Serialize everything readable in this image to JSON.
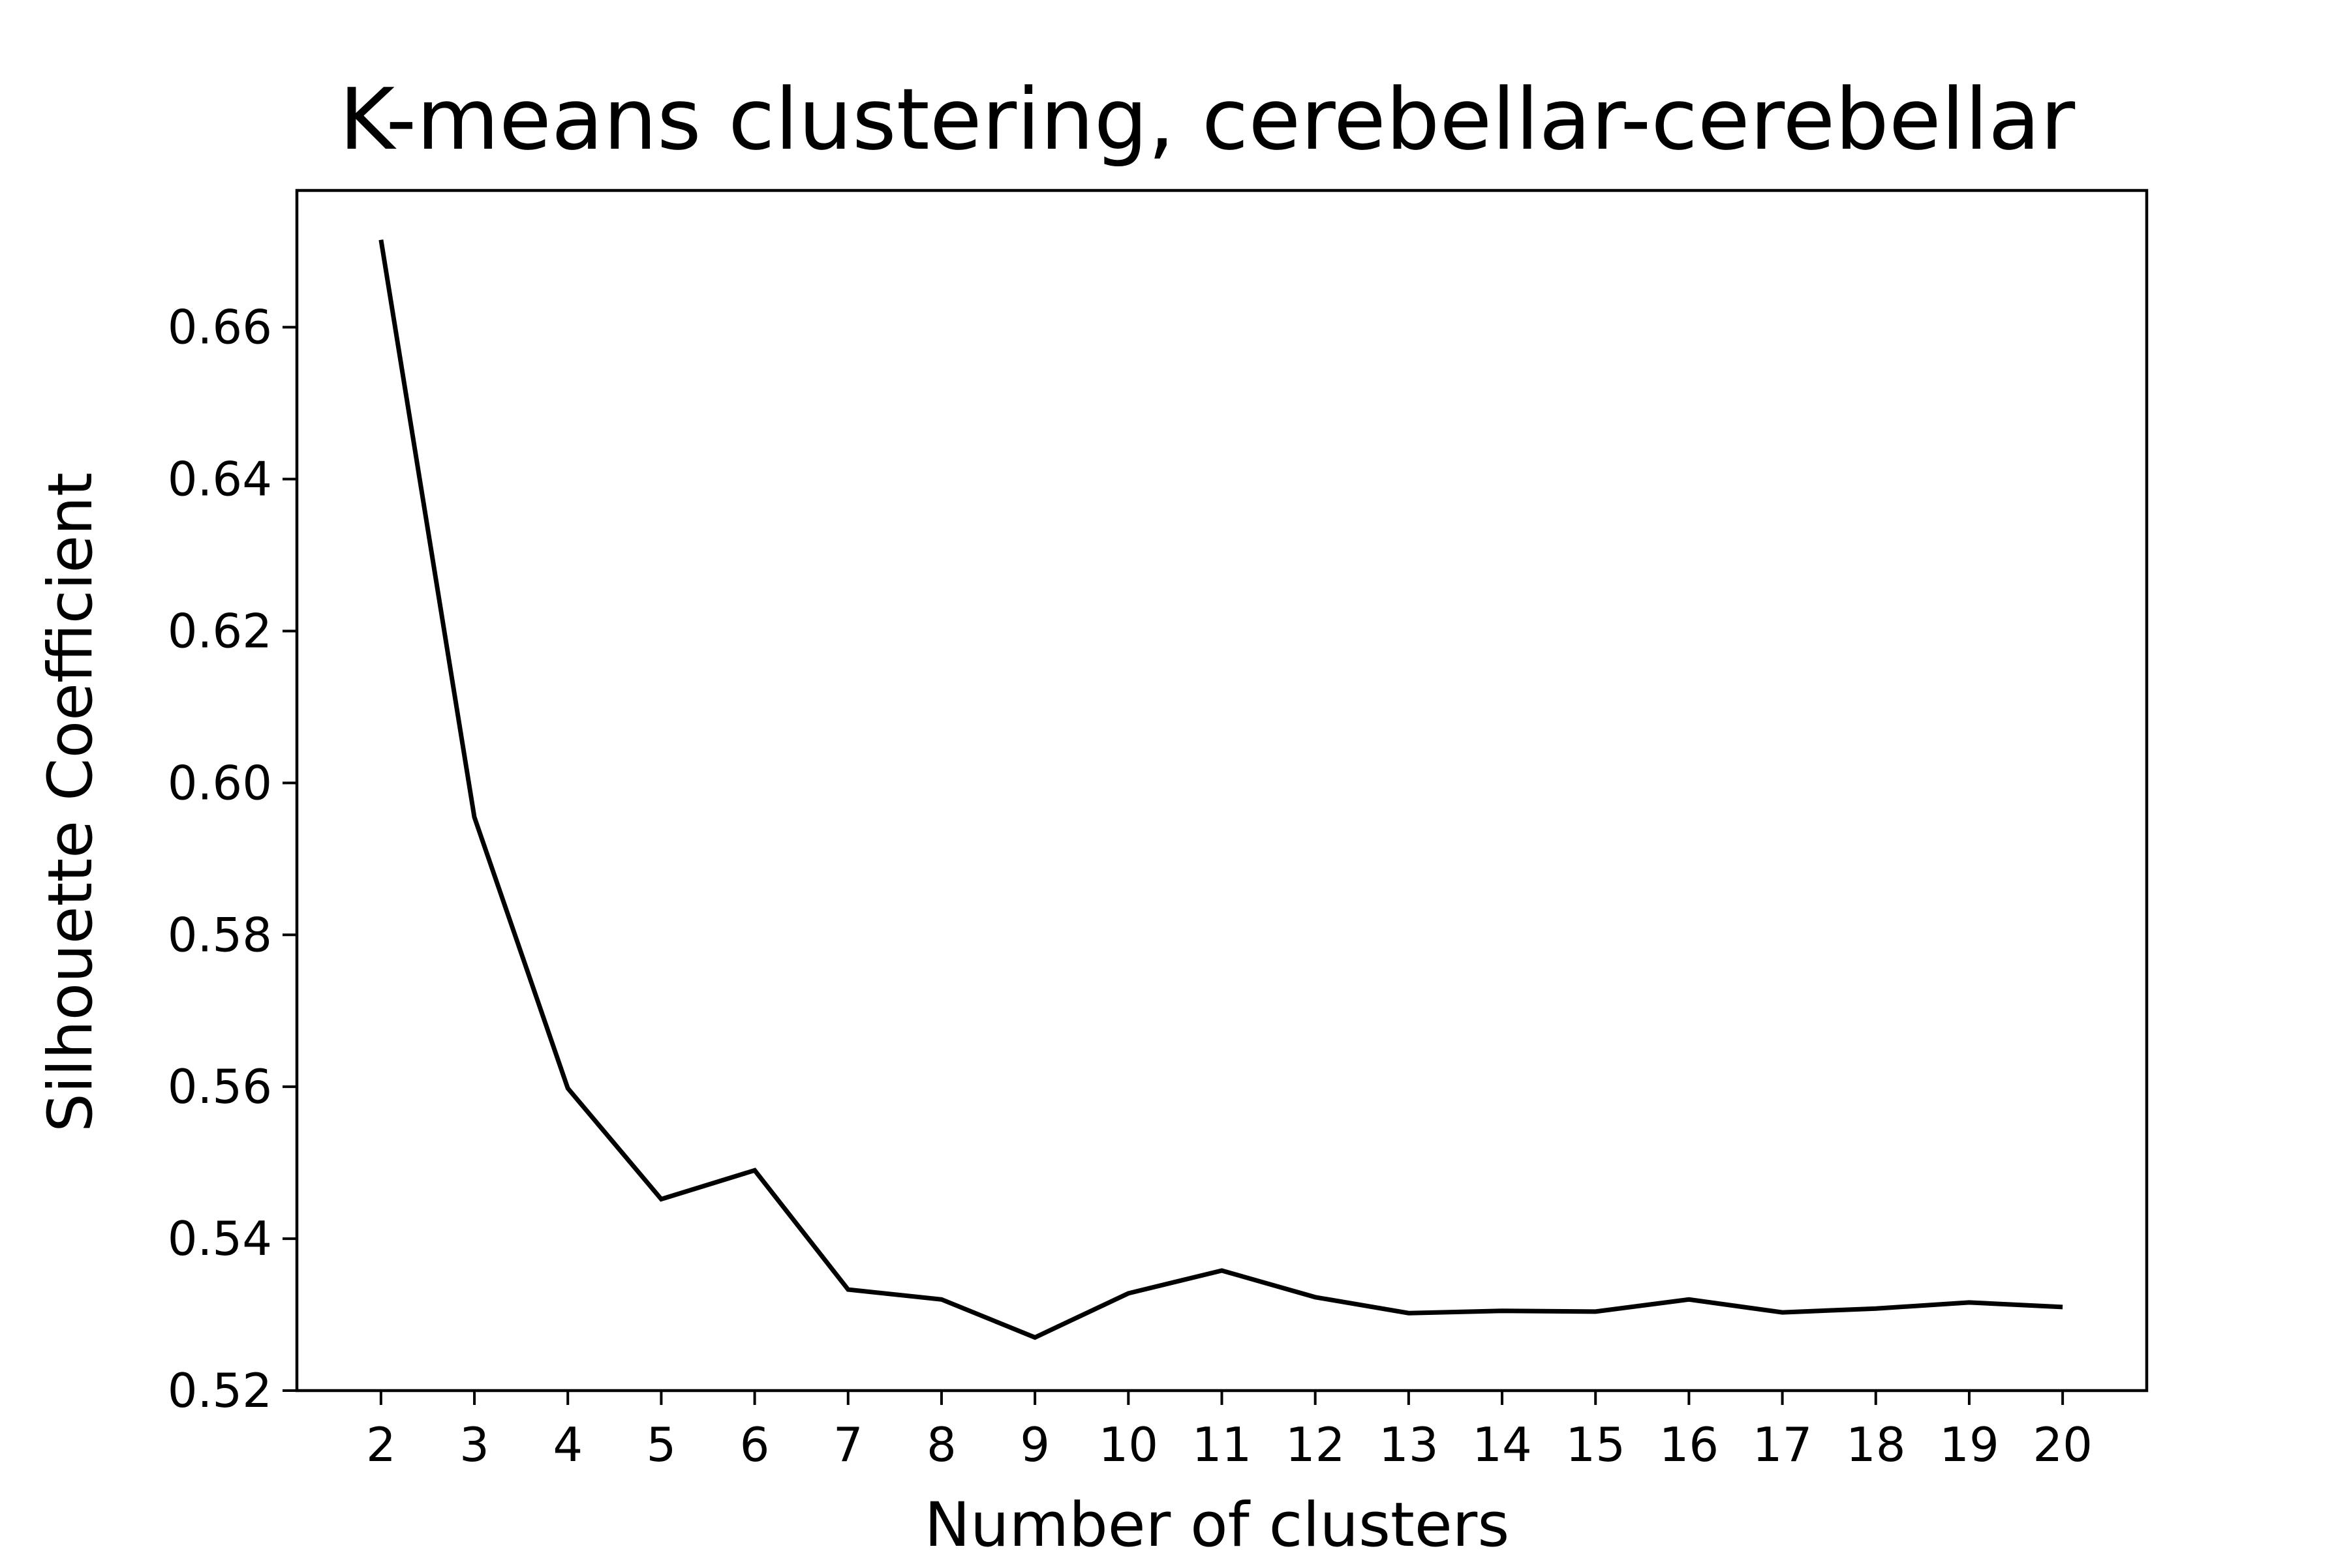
{
  "chart_data": {
    "type": "line",
    "title": "K-means clustering, cerebellar-cerebellar",
    "xlabel": "Number of clusters",
    "ylabel": "Silhouette Coefficient",
    "x": [
      2,
      3,
      4,
      5,
      6,
      7,
      8,
      9,
      10,
      11,
      12,
      13,
      14,
      15,
      16,
      17,
      18,
      19,
      20
    ],
    "series": [
      {
        "values": [
          0.6715,
          0.5955,
          0.5598,
          0.5452,
          0.549,
          0.5333,
          0.532,
          0.527,
          0.5328,
          0.5358,
          0.5323,
          0.5302,
          0.5305,
          0.5304,
          0.532,
          0.5303,
          0.5308,
          0.5316,
          0.531
        ],
        "color": "#000000"
      }
    ],
    "xlim": [
      1.1,
      20.9
    ],
    "ylim": [
      0.52,
      0.678
    ],
    "xticks": [
      "2",
      "3",
      "4",
      "5",
      "6",
      "7",
      "8",
      "9",
      "10",
      "11",
      "12",
      "13",
      "14",
      "15",
      "16",
      "17",
      "18",
      "19",
      "20"
    ],
    "yticks": [
      "0.52",
      "0.54",
      "0.56",
      "0.58",
      "0.60",
      "0.62",
      "0.64",
      "0.66"
    ],
    "grid": false,
    "legend": "none"
  }
}
